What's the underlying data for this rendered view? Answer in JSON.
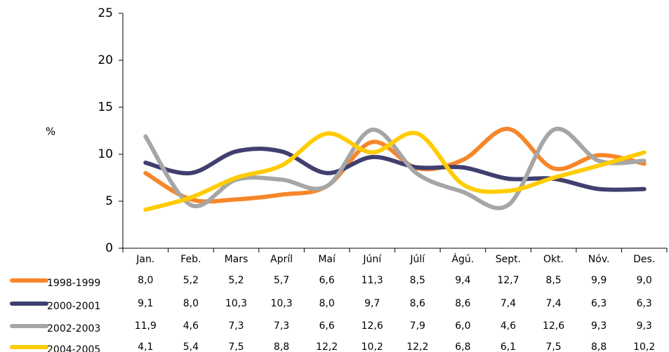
{
  "chart_data": {
    "type": "line",
    "ylabel": "%",
    "categories": [
      "Jan.",
      "Feb.",
      "Mars",
      "Apríl",
      "Maí",
      "Júní",
      "Júlí",
      "Ágú.",
      "Sept.",
      "Okt.",
      "Nóv.",
      "Des."
    ],
    "series": [
      {
        "name": "1998-1999",
        "color": "#f7862a",
        "values": [
          8.0,
          5.2,
          5.2,
          5.7,
          6.6,
          11.3,
          8.5,
          9.4,
          12.7,
          8.5,
          9.9,
          9.0
        ],
        "value_labels": [
          "8,0",
          "5,2",
          "5,2",
          "5,7",
          "6,6",
          "11,3",
          "8,5",
          "9,4",
          "12,7",
          "8,5",
          "9,9",
          "9,0"
        ]
      },
      {
        "name": "2000-2001",
        "color": "#403f6f",
        "values": [
          9.1,
          8.0,
          10.3,
          10.3,
          8.0,
          9.7,
          8.6,
          8.6,
          7.4,
          7.4,
          6.3,
          6.3
        ],
        "value_labels": [
          "9,1",
          "8,0",
          "10,3",
          "10,3",
          "8,0",
          "9,7",
          "8,6",
          "8,6",
          "7,4",
          "7,4",
          "6,3",
          "6,3"
        ]
      },
      {
        "name": "2002-2003",
        "color": "#a6a6a6",
        "values": [
          11.9,
          4.6,
          7.3,
          7.3,
          6.6,
          12.6,
          7.9,
          6.0,
          4.6,
          12.6,
          9.3,
          9.3
        ],
        "value_labels": [
          "11,9",
          "4,6",
          "7,3",
          "7,3",
          "6,6",
          "12,6",
          "7,9",
          "6,0",
          "4,6",
          "12,6",
          "9,3",
          "9,3"
        ]
      },
      {
        "name": "2004-2005",
        "color": "#ffcc00",
        "values": [
          4.1,
          5.4,
          7.5,
          8.8,
          12.2,
          10.2,
          12.2,
          6.8,
          6.1,
          7.5,
          8.8,
          10.2
        ],
        "value_labels": [
          "4,1",
          "5,4",
          "7,5",
          "8,8",
          "12,2",
          "10,2",
          "12,2",
          "6,8",
          "6,1",
          "7,5",
          "8,8",
          "10,2"
        ]
      }
    ],
    "ylim": [
      0,
      25
    ],
    "yticks": [
      0,
      5,
      10,
      15,
      20,
      25
    ],
    "grid": false
  }
}
